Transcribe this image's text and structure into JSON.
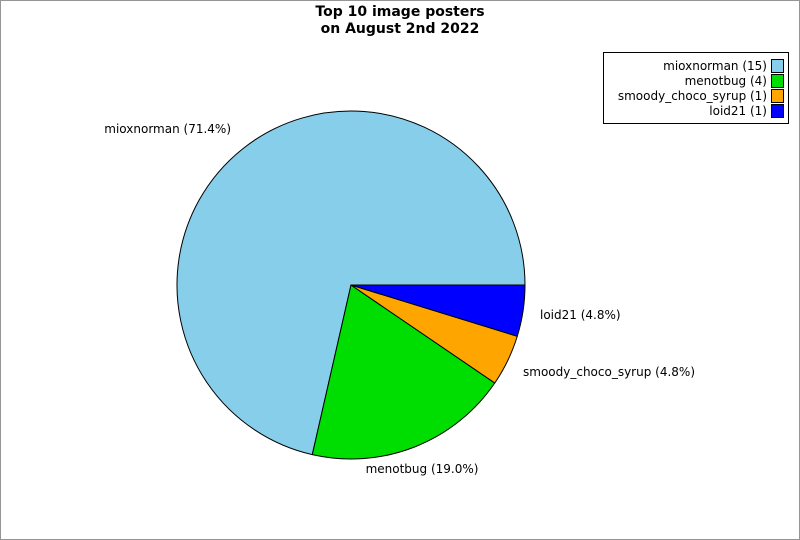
{
  "frame": {
    "background": "#FFFFFF",
    "border_color": "#959595"
  },
  "title": {
    "line1": "Top 10 image posters",
    "line2": "on August 2nd 2022"
  },
  "chart_data": {
    "type": "pie",
    "title": "Top 10 image posters on August 2nd 2022",
    "total": 21,
    "start_angle_deg": 0,
    "direction": "counterclockwise",
    "grid": false,
    "legend_position": "top-right",
    "slices": [
      {
        "label": "mioxnorman",
        "value": 15,
        "percent": 71.4,
        "color": "#87CEEB"
      },
      {
        "label": "menotbug",
        "value": 4,
        "percent": 19.0,
        "color": "#00DD00"
      },
      {
        "label": "smoody_choco_syrup",
        "value": 1,
        "percent": 4.8,
        "color": "#FFA500"
      },
      {
        "label": "loid21",
        "value": 1,
        "percent": 4.8,
        "color": "#0000FF"
      }
    ],
    "slice_labels": [
      "mioxnorman (71.4%)",
      "menotbug (19.0%)",
      "smoody_choco_syrup (4.8%)",
      "loid21 (4.8%)"
    ],
    "edge_color": "#000000"
  },
  "legend": {
    "items": [
      {
        "label": "mioxnorman (15)",
        "color": "#87CEEB"
      },
      {
        "label": "menotbug (4)",
        "color": "#00DD00"
      },
      {
        "label": "smoody_choco_syrup (1)",
        "color": "#FFA500"
      },
      {
        "label": "loid21 (1)",
        "color": "#0000FF"
      }
    ]
  }
}
